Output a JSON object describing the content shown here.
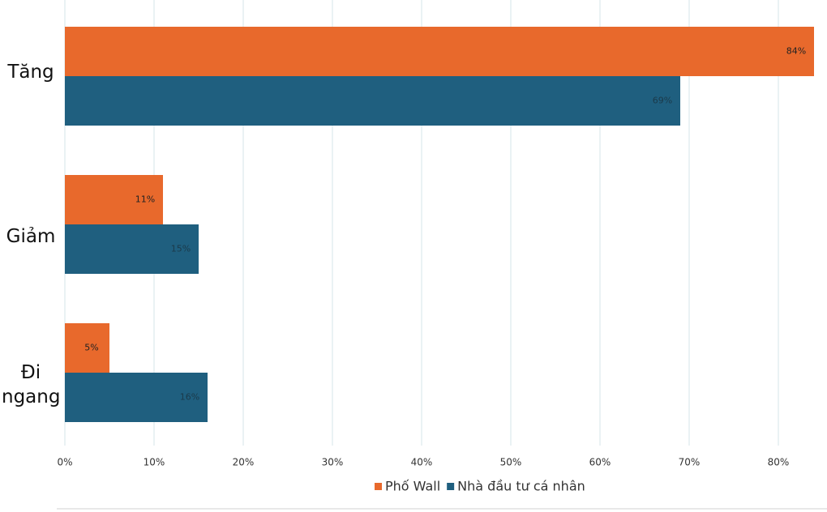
{
  "chart_data": {
    "type": "hbar",
    "categories": [
      "Tăng",
      "Giảm",
      "Đi ngang"
    ],
    "series": [
      {
        "name": "Phố Wall",
        "color": "#e8692c",
        "values": [
          84,
          11,
          5
        ],
        "value_labels": [
          "84%",
          "11%",
          "5%"
        ]
      },
      {
        "name": "Nhà đầu tư cá nhân",
        "color": "#1f5f7f",
        "values": [
          69,
          15,
          16
        ],
        "value_labels": [
          "69%",
          "15%",
          "16%"
        ]
      }
    ],
    "xlim": [
      0,
      85
    ],
    "xticks": [
      {
        "value": 0,
        "label": "0%"
      },
      {
        "value": 10,
        "label": "10%"
      },
      {
        "value": 20,
        "label": "20%"
      },
      {
        "value": 30,
        "label": "30%"
      },
      {
        "value": 40,
        "label": "40%"
      },
      {
        "value": 50,
        "label": "50%"
      },
      {
        "value": 60,
        "label": "60%"
      },
      {
        "value": 70,
        "label": "70%"
      },
      {
        "value": 80,
        "label": "80%"
      }
    ],
    "grid": true,
    "legend": "bottom"
  }
}
